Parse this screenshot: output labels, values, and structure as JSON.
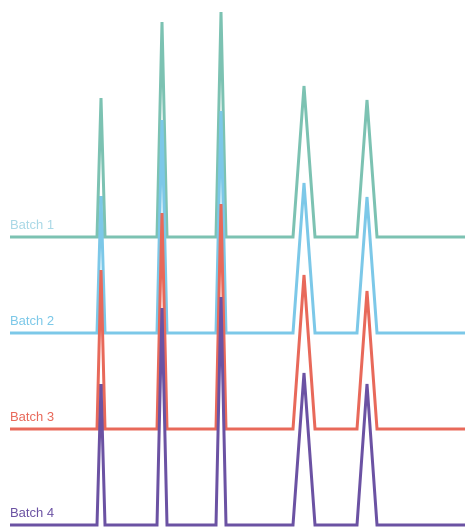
{
  "chart_data": {
    "type": "ridgeline",
    "x": [
      10,
      97,
      101,
      105,
      157,
      162,
      167,
      216,
      221,
      226,
      293,
      304,
      315,
      357,
      367,
      377,
      465
    ],
    "xlim": [
      0,
      465
    ],
    "ylim": [
      0,
      240
    ],
    "series": [
      {
        "name": "Batch 1",
        "color": "#7cc2b2",
        "label_color": "#a9d8e6",
        "values": [
          0,
          0,
          139,
          0,
          0,
          215,
          0,
          0,
          225,
          0,
          0,
          151,
          0,
          0,
          137,
          0,
          0
        ]
      },
      {
        "name": "Batch 2",
        "color": "#7cc8e8",
        "values": [
          0,
          0,
          137,
          0,
          0,
          213,
          0,
          0,
          222,
          0,
          0,
          150,
          0,
          0,
          136,
          0,
          0
        ]
      },
      {
        "name": "Batch 3",
        "color": "#e8695a",
        "values": [
          0,
          0,
          159,
          0,
          0,
          216,
          0,
          0,
          225,
          0,
          0,
          154,
          0,
          0,
          138,
          0,
          0
        ]
      },
      {
        "name": "Batch 4",
        "color": "#6b52a3",
        "values": [
          0,
          0,
          141,
          0,
          0,
          217,
          0,
          0,
          228,
          0,
          0,
          152,
          0,
          0,
          141,
          0,
          0
        ]
      }
    ]
  }
}
